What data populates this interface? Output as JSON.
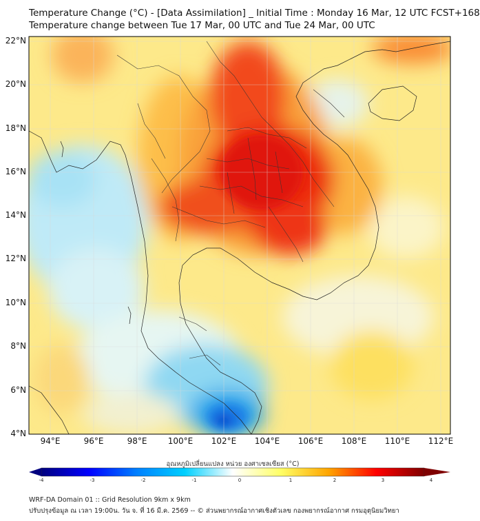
{
  "header": {
    "title_line1": "Temperature Change (°C) - [Data Assimilation] _ Initial Time : Monday 16 Mar, 12 UTC FCST+168",
    "title_line2": "Temperature change between Tue 17 Mar, 00 UTC and Tue 24 Mar, 00 UTC"
  },
  "axes": {
    "lat_labels": [
      "22°N",
      "20°N",
      "18°N",
      "16°N",
      "14°N",
      "12°N",
      "10°N",
      "8°N",
      "6°N",
      "4°N"
    ],
    "lon_labels": [
      "94°E",
      "96°E",
      "98°E",
      "100°E",
      "102°E",
      "104°E",
      "106°E",
      "108°E",
      "110°E",
      "112°E"
    ]
  },
  "colorbar": {
    "title": "อุณหภูมิเปลี่ยนแปลง หน่วย องศาเซลเซียส (°C)",
    "ticks": [
      "-4",
      "-3",
      "-2",
      "-1",
      "0",
      "1",
      "2",
      "3",
      "4"
    ],
    "colors": [
      "#00007f",
      "#0000ff",
      "#0080ff",
      "#00d0ff",
      "#ffffff",
      "#ffff66",
      "#ffa500",
      "#ff0000",
      "#7f0000"
    ]
  },
  "footer": {
    "line1": "WRF-DA Domain 01 :: Grid Resolution 9km x 9km",
    "line2": "ปรับปรุงข้อมูล ณ เวลา 19:00น. วัน จ. ที่ 16 มี.ค. 2569 -- © ส่วนพยากรณ์อากาศเชิงตัวเลข กองพยากรณ์อากาศ กรมอุตุนิยมวิทยา"
  }
}
